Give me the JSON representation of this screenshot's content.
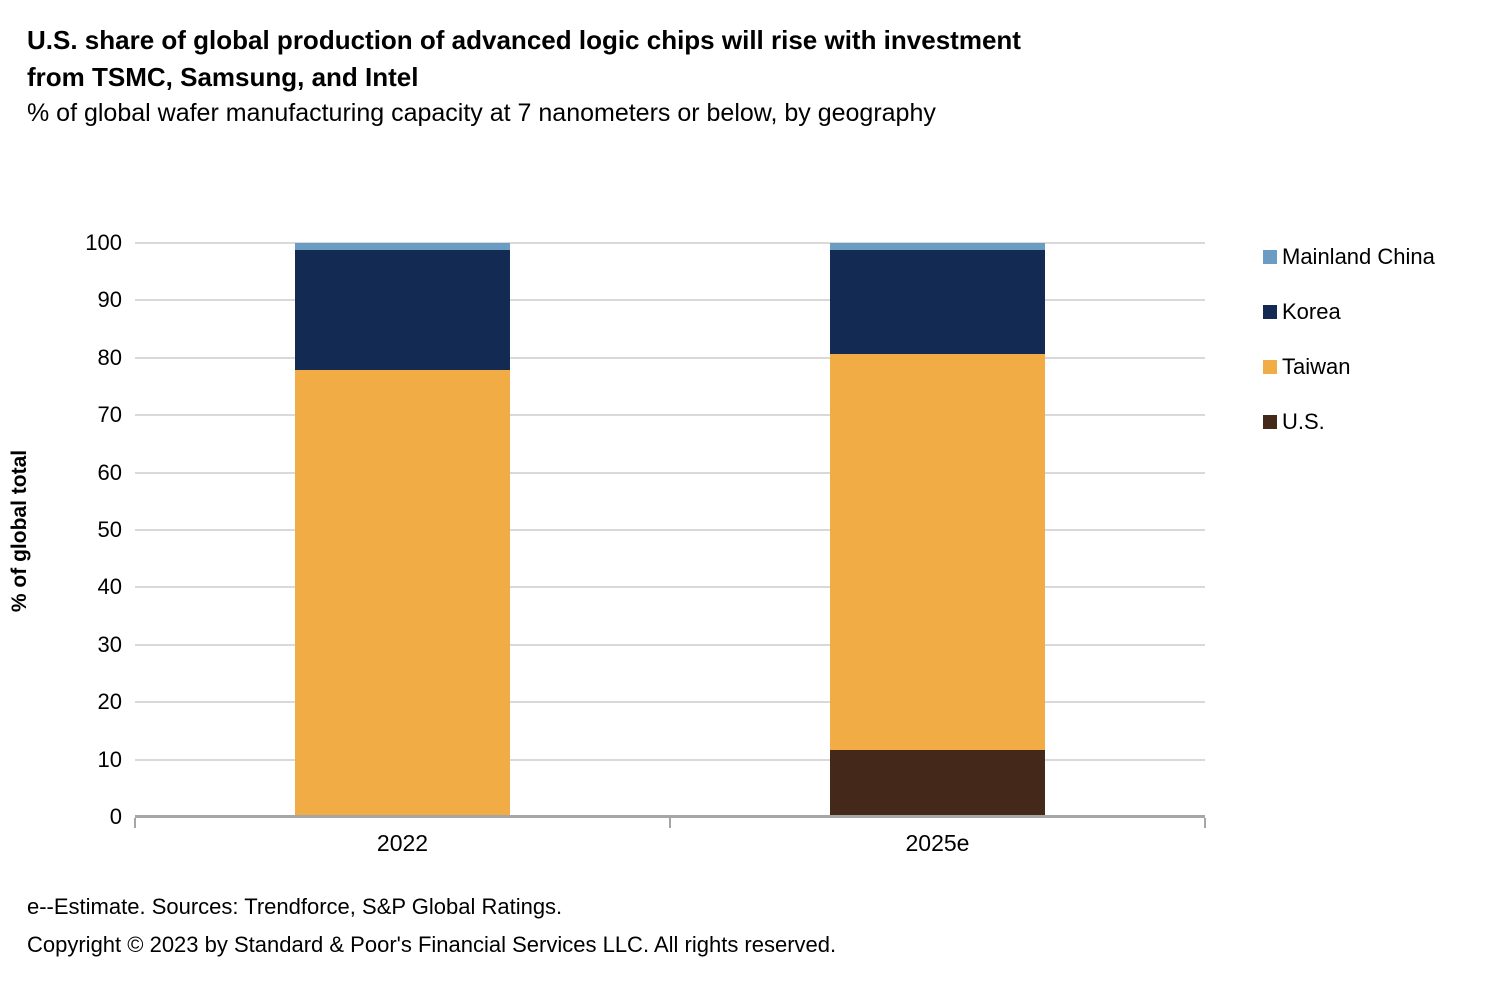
{
  "header": {
    "title": "U.S. share of global production of advanced logic chips will rise with investment\nfrom TSMC, Samsung, and Intel",
    "subtitle": "% of global wafer manufacturing capacity at 7 nanometers or below, by geography"
  },
  "chart_data": {
    "type": "bar",
    "stacked": true,
    "categories": [
      "2022",
      "2025e"
    ],
    "series": [
      {
        "name": "U.S.",
        "color": "#44281a",
        "values": [
          0,
          11.6
        ]
      },
      {
        "name": "Taiwan",
        "color": "#f2ac45",
        "values": [
          77.8,
          69.0
        ]
      },
      {
        "name": "Korea",
        "color": "#132a52",
        "values": [
          21.0,
          18.1
        ]
      },
      {
        "name": "Mainland China",
        "color": "#6a9cc4",
        "values": [
          1.2,
          1.3
        ]
      }
    ],
    "title": "U.S. share of global production of advanced logic chips will rise with investment from TSMC, Samsung, and Intel",
    "xlabel": "",
    "ylabel": "% of global total",
    "ylim": [
      0,
      100
    ],
    "yticks": [
      0,
      10,
      20,
      30,
      40,
      50,
      60,
      70,
      80,
      90,
      100
    ],
    "grid": true,
    "legend_position": "right",
    "legend_order": [
      "Mainland China",
      "Korea",
      "Taiwan",
      "U.S."
    ],
    "colors": {
      "gridline": "#d9d9d9",
      "axis_line": "#a6a6a6",
      "background": "#ffffff",
      "text": "#000000"
    }
  },
  "footer": {
    "line1": "e--Estimate. Sources: Trendforce, S&P Global Ratings.",
    "line2": "Copyright © 2023 by Standard & Poor's Financial Services LLC. All rights reserved."
  }
}
